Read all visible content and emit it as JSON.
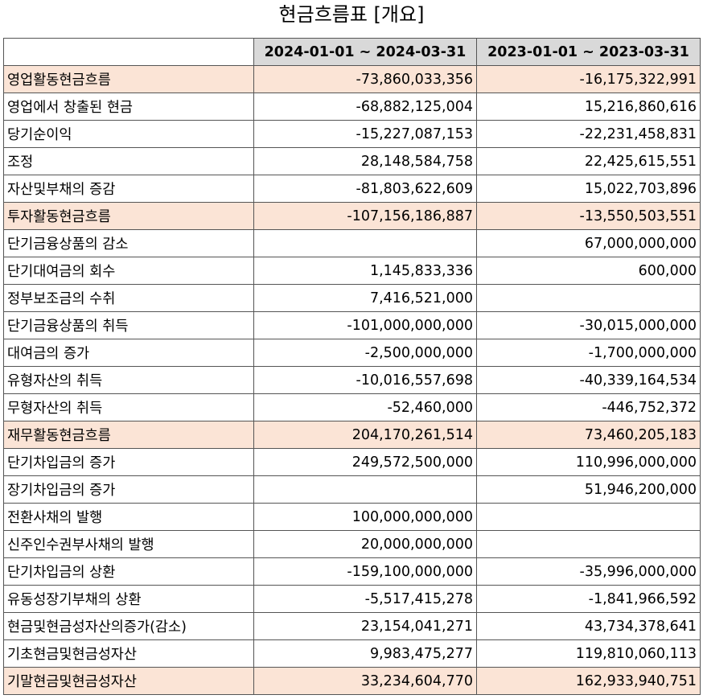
{
  "title": "현금흐름표 [개요]",
  "columns": [
    "",
    "2024-01-01 ~ 2024-03-31",
    "2023-01-01 ~ 2023-03-31"
  ],
  "rows": [
    {
      "label": "영업활동현금흐름",
      "v2024": "-73,860,033,356",
      "v2023": "-16,175,322,991",
      "section": true,
      "indent": false
    },
    {
      "label": "영업에서 창출된 현금",
      "v2024": "-68,882,125,004",
      "v2023": "15,216,860,616",
      "section": false,
      "indent": true
    },
    {
      "label": "당기순이익",
      "v2024": "-15,227,087,153",
      "v2023": "-22,231,458,831",
      "section": false,
      "indent": true
    },
    {
      "label": "조정",
      "v2024": "28,148,584,758",
      "v2023": "22,425,615,551",
      "section": false,
      "indent": true
    },
    {
      "label": "자산및부채의 증감",
      "v2024": "-81,803,622,609",
      "v2023": "15,022,703,896",
      "section": false,
      "indent": true
    },
    {
      "label": "투자활동현금흐름",
      "v2024": "-107,156,186,887",
      "v2023": "-13,550,503,551",
      "section": true,
      "indent": false
    },
    {
      "label": "단기금융상품의 감소",
      "v2024": "",
      "v2023": "67,000,000,000",
      "section": false,
      "indent": true
    },
    {
      "label": "단기대여금의 회수",
      "v2024": "1,145,833,336",
      "v2023": "600,000",
      "section": false,
      "indent": true
    },
    {
      "label": "정부보조금의 수취",
      "v2024": "7,416,521,000",
      "v2023": "",
      "section": false,
      "indent": true
    },
    {
      "label": "단기금융상품의 취득",
      "v2024": "-101,000,000,000",
      "v2023": "-30,015,000,000",
      "section": false,
      "indent": true
    },
    {
      "label": "대여금의 증가",
      "v2024": "-2,500,000,000",
      "v2023": "-1,700,000,000",
      "section": false,
      "indent": true
    },
    {
      "label": "유형자산의 취득",
      "v2024": "-10,016,557,698",
      "v2023": "-40,339,164,534",
      "section": false,
      "indent": true
    },
    {
      "label": "무형자산의 취득",
      "v2024": "-52,460,000",
      "v2023": "-446,752,372",
      "section": false,
      "indent": true
    },
    {
      "label": "재무활동현금흐름",
      "v2024": "204,170,261,514",
      "v2023": "73,460,205,183",
      "section": true,
      "indent": false
    },
    {
      "label": "단기차입금의 증가",
      "v2024": "249,572,500,000",
      "v2023": "110,996,000,000",
      "section": false,
      "indent": true
    },
    {
      "label": "장기차입금의 증가",
      "v2024": "",
      "v2023": "51,946,200,000",
      "section": false,
      "indent": true
    },
    {
      "label": "전환사채의 발행",
      "v2024": "100,000,000,000",
      "v2023": "",
      "section": false,
      "indent": true
    },
    {
      "label": "신주인수권부사채의 발행",
      "v2024": "20,000,000,000",
      "v2023": "",
      "section": false,
      "indent": true
    },
    {
      "label": "단기차입금의 상환",
      "v2024": "-159,100,000,000",
      "v2023": "-35,996,000,000",
      "section": false,
      "indent": true
    },
    {
      "label": "유동성장기부채의 상환",
      "v2024": "-5,517,415,278",
      "v2023": "-1,841,966,592",
      "section": false,
      "indent": true
    },
    {
      "label": "현금및현금성자산의증가(감소)",
      "v2024": "23,154,041,271",
      "v2023": "43,734,378,641",
      "section": false,
      "indent": false
    },
    {
      "label": "기초현금및현금성자산",
      "v2024": "9,983,475,277",
      "v2023": "119,810,060,113",
      "section": false,
      "indent": false
    },
    {
      "label": "기말현금및현금성자산",
      "v2024": "33,234,604,770",
      "v2023": "162,933,940,751",
      "section": true,
      "indent": false
    }
  ]
}
